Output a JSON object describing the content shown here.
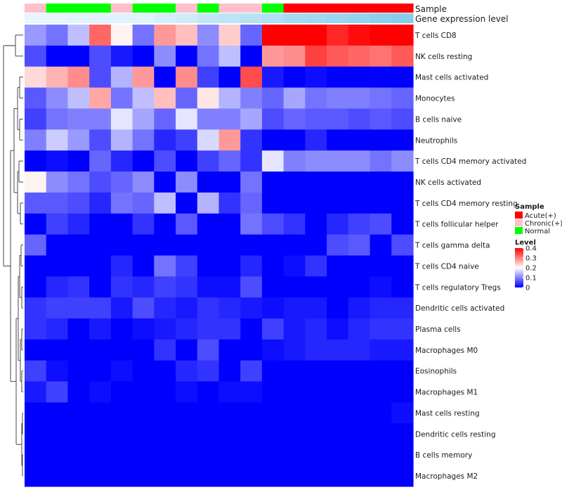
{
  "chart_data": {
    "type": "heatmap",
    "annotations": {
      "sample_label": "Sample",
      "level_label": "Gene expression level",
      "sample_groups": [
        "Chronic",
        "Normal",
        "Normal",
        "Normal",
        "Chronic",
        "Normal",
        "Normal",
        "Chronic",
        "Normal",
        "Chronic",
        "Chronic",
        "Normal",
        "Acute",
        "Acute",
        "Acute",
        "Acute",
        "Acute",
        "Acute"
      ],
      "expression_levels": [
        0.18,
        0.18,
        0.19,
        0.19,
        0.19,
        0.19,
        0.21,
        0.22,
        0.24,
        0.25,
        0.26,
        0.27,
        0.29,
        0.3,
        0.31,
        0.32,
        0.33,
        0.34
      ]
    },
    "rows": [
      "T cells CD8",
      "NK cells resting",
      "Mast cells activated",
      "Monocytes",
      "B cells naive",
      "Neutrophils",
      "T cells CD4 memory activated",
      "NK cells activated",
      "T cells CD4 memory resting",
      "T cells follicular helper",
      "T cells gamma delta",
      "T cells CD4 naive",
      "T cells regulatory  Tregs",
      "Dendritic cells activated",
      "Plasma cells",
      "Macrophages M0",
      "Eosinophils",
      "Macrophages M1",
      "Mast cells resting",
      "Dendritic cells resting",
      "B cells memory",
      "Macrophages M2"
    ],
    "values": [
      [
        0.12,
        0.09,
        0.15,
        0.32,
        0.21,
        0.09,
        0.28,
        0.25,
        0.11,
        0.24,
        0.08,
        0.4,
        0.4,
        0.4,
        0.37,
        0.39,
        0.4,
        0.4
      ],
      [
        0.06,
        0.0,
        0.0,
        0.06,
        0.02,
        0.0,
        0.11,
        0.0,
        0.09,
        0.15,
        0.0,
        0.28,
        0.29,
        0.35,
        0.33,
        0.32,
        0.31,
        0.33
      ],
      [
        0.23,
        0.26,
        0.29,
        0.06,
        0.14,
        0.28,
        0.0,
        0.29,
        0.05,
        0.0,
        0.34,
        0.02,
        0.0,
        0.01,
        0.0,
        0.0,
        0.0,
        0.0
      ],
      [
        0.07,
        0.11,
        0.15,
        0.27,
        0.09,
        0.15,
        0.25,
        0.08,
        0.22,
        0.14,
        0.1,
        0.08,
        0.13,
        0.09,
        0.1,
        0.1,
        0.09,
        0.08
      ],
      [
        0.05,
        0.09,
        0.1,
        0.1,
        0.18,
        0.13,
        0.08,
        0.18,
        0.1,
        0.1,
        0.13,
        0.06,
        0.08,
        0.07,
        0.07,
        0.06,
        0.07,
        0.06
      ],
      [
        0.1,
        0.16,
        0.12,
        0.06,
        0.14,
        0.09,
        0.03,
        0.05,
        0.17,
        0.28,
        0.04,
        0.0,
        0.0,
        0.03,
        0.0,
        0.0,
        0.0,
        0.0
      ],
      [
        0.0,
        0.01,
        0.0,
        0.08,
        0.03,
        0.0,
        0.06,
        0.0,
        0.05,
        0.08,
        0.04,
        0.18,
        0.1,
        0.11,
        0.11,
        0.11,
        0.09,
        0.11
      ],
      [
        0.21,
        0.11,
        0.09,
        0.06,
        0.08,
        0.11,
        0.0,
        0.11,
        0.0,
        0.0,
        0.09,
        0.0,
        0.0,
        0.0,
        0.0,
        0.0,
        0.0,
        0.0
      ],
      [
        0.07,
        0.07,
        0.06,
        0.03,
        0.09,
        0.08,
        0.15,
        0.0,
        0.14,
        0.04,
        0.08,
        0.0,
        0.0,
        0.0,
        0.0,
        0.0,
        0.0,
        0.0
      ],
      [
        0.0,
        0.05,
        0.03,
        0.0,
        0.0,
        0.04,
        0.0,
        0.07,
        0.0,
        0.0,
        0.09,
        0.06,
        0.04,
        0.0,
        0.03,
        0.05,
        0.06,
        0.0
      ],
      [
        0.08,
        0.0,
        0.0,
        0.0,
        0.0,
        0.0,
        0.0,
        0.0,
        0.0,
        0.0,
        0.0,
        0.0,
        0.0,
        0.0,
        0.06,
        0.07,
        0.0,
        0.06
      ],
      [
        0.0,
        0.0,
        0.0,
        0.0,
        0.03,
        0.0,
        0.09,
        0.05,
        0.0,
        0.0,
        0.03,
        0.0,
        0.01,
        0.04,
        0.0,
        0.0,
        0.0,
        0.0
      ],
      [
        0.0,
        0.03,
        0.04,
        0.0,
        0.04,
        0.03,
        0.05,
        0.04,
        0.01,
        0.01,
        0.06,
        0.0,
        0.0,
        0.0,
        0.0,
        0.0,
        0.01,
        0.0
      ],
      [
        0.04,
        0.05,
        0.05,
        0.05,
        0.02,
        0.06,
        0.03,
        0.02,
        0.04,
        0.03,
        0.02,
        0.01,
        0.02,
        0.02,
        0.0,
        0.02,
        0.03,
        0.03
      ],
      [
        0.04,
        0.03,
        0.0,
        0.02,
        0.0,
        0.01,
        0.02,
        0.03,
        0.04,
        0.04,
        0.0,
        0.05,
        0.02,
        0.03,
        0.01,
        0.03,
        0.04,
        0.04
      ],
      [
        0.0,
        0.0,
        0.0,
        0.0,
        0.0,
        0.0,
        0.04,
        0.0,
        0.06,
        0.0,
        0.0,
        0.01,
        0.02,
        0.03,
        0.03,
        0.03,
        0.02,
        0.02
      ],
      [
        0.05,
        0.01,
        0.0,
        0.0,
        0.01,
        0.0,
        0.0,
        0.03,
        0.04,
        0.0,
        0.05,
        0.0,
        0.0,
        0.0,
        0.0,
        0.0,
        0.0,
        0.0
      ],
      [
        0.02,
        0.05,
        0.0,
        0.01,
        0.0,
        0.0,
        0.0,
        0.01,
        0.0,
        0.01,
        0.01,
        0.0,
        0.0,
        0.0,
        0.0,
        0.0,
        0.0,
        0.0
      ],
      [
        0.0,
        0.0,
        0.0,
        0.0,
        0.0,
        0.0,
        0.0,
        0.0,
        0.0,
        0.0,
        0.0,
        0.0,
        0.0,
        0.0,
        0.0,
        0.0,
        0.0,
        0.01
      ],
      [
        0.0,
        0.0,
        0.0,
        0.0,
        0.0,
        0.0,
        0.0,
        0.0,
        0.0,
        0.0,
        0.0,
        0.0,
        0.0,
        0.0,
        0.0,
        0.0,
        0.0,
        0.0
      ],
      [
        0.0,
        0.0,
        0.0,
        0.0,
        0.0,
        0.0,
        0.0,
        0.0,
        0.0,
        0.0,
        0.0,
        0.0,
        0.0,
        0.0,
        0.0,
        0.0,
        0.0,
        0.0
      ],
      [
        0.0,
        0.0,
        0.0,
        0.0,
        0.0,
        0.0,
        0.0,
        0.0,
        0.0,
        0.0,
        0.0,
        0.0,
        0.0,
        0.0,
        0.0,
        0.0,
        0.0,
        0.0
      ]
    ],
    "dendrogram_merges": [
      [
        0,
        1
      ],
      [
        2,
        3
      ],
      [
        4,
        5
      ],
      [
        6,
        7
      ],
      [
        8,
        9
      ],
      [
        10,
        11
      ],
      [
        12,
        13
      ],
      [
        14,
        15
      ],
      [
        16,
        17
      ],
      [
        18,
        19
      ],
      [
        20,
        21
      ]
    ],
    "color_scale": {
      "min": 0,
      "mid": 0.2,
      "max": 0.4,
      "low": "#0000ff",
      "midColor": "#ffffff",
      "high": "#ff0000"
    },
    "legend": {
      "sample_title": "Sample",
      "sample_entries": [
        {
          "label": "Acute(+)",
          "color": "#ff0000"
        },
        {
          "label": "Chronic(+)",
          "color": "#ffc0cb"
        },
        {
          "label": "Normal",
          "color": "#00ff00"
        }
      ],
      "level_title": "Level",
      "level_ticks": [
        {
          "value": 0.4,
          "label": "0.4"
        },
        {
          "value": 0.3,
          "label": "0.3"
        },
        {
          "value": 0.2,
          "label": "0.2"
        },
        {
          "value": 0.1,
          "label": "0.1"
        },
        {
          "value": 0.0,
          "label": "0"
        }
      ]
    },
    "group_colors": {
      "Acute": "#ff0000",
      "Chronic": "#ffc0cb",
      "Normal": "#00ff00"
    },
    "level_range": [
      0.18,
      0.34
    ],
    "level_colors": {
      "low": "#e6f5ff",
      "high": "#87ceeb"
    }
  }
}
